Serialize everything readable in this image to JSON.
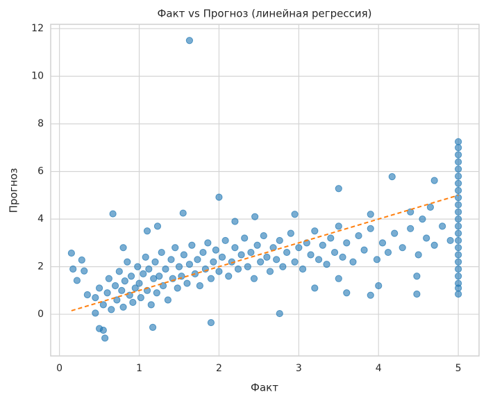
{
  "chart_data": {
    "type": "scatter",
    "title": "Факт vs Прогноз (линейная регрессия)",
    "xlabel": "Факт",
    "ylabel": "Прогноз",
    "xlim": [
      -0.11,
      5.26
    ],
    "ylim": [
      -1.75,
      12.18
    ],
    "xticks": [
      0,
      1,
      2,
      3,
      4,
      5
    ],
    "yticks": [
      0,
      2,
      4,
      6,
      8,
      10,
      12
    ],
    "grid": true,
    "series": [
      {
        "color": "#1f77b4",
        "x": [
          0.45,
          0.5,
          0.55,
          0.6,
          0.62,
          0.65,
          0.7,
          0.72,
          0.75,
          0.78,
          0.8,
          0.82,
          0.85,
          0.88,
          0.9,
          0.92,
          0.95,
          0.98,
          1.0,
          1.02,
          1.05,
          1.08,
          1.1,
          1.12,
          1.15,
          1.18,
          1.2,
          1.22,
          1.25,
          1.28,
          1.3,
          1.33,
          1.36,
          1.4,
          1.42,
          1.45,
          1.48,
          1.5,
          1.53,
          1.56,
          1.6,
          1.63,
          1.66,
          1.7,
          1.73,
          1.76,
          1.8,
          1.83,
          1.86,
          1.9,
          1.93,
          1.96,
          2.0,
          2.04,
          2.08,
          2.12,
          2.16,
          2.2,
          2.24,
          2.28,
          2.32,
          2.36,
          2.4,
          2.44,
          2.48,
          2.52,
          2.56,
          2.6,
          2.64,
          2.68,
          2.72,
          2.76,
          2.8,
          2.85,
          2.9,
          2.95,
          3.0,
          3.05,
          3.1,
          3.15,
          3.2,
          3.25,
          3.3,
          3.35,
          3.4,
          3.45,
          3.5,
          3.55,
          3.6,
          3.68,
          3.75,
          3.82,
          3.9,
          3.98,
          4.05,
          4.12,
          4.2,
          4.3,
          4.4,
          4.5,
          4.6,
          4.7,
          4.8,
          4.9,
          1.63,
          2.0,
          1.55,
          0.67,
          3.5,
          4.17,
          4.7,
          0.15,
          0.17,
          0.22,
          0.28,
          0.31,
          0.35,
          0.5,
          0.55,
          0.57,
          0.45,
          1.17,
          2.76,
          1.9,
          3.2,
          3.5,
          3.6,
          3.9,
          4.0,
          4.48,
          4.48,
          3.9,
          4.4,
          4.55,
          1.23,
          1.1,
          0.8,
          2.45,
          2.2,
          2.95,
          4.65,
          5,
          5,
          5,
          5,
          5,
          5,
          5,
          5,
          5,
          5,
          5,
          5,
          5,
          5,
          5,
          5,
          5,
          5,
          5,
          5,
          5,
          5,
          5
        ],
        "y": [
          0.7,
          1.1,
          0.4,
          0.9,
          1.5,
          0.2,
          1.2,
          0.6,
          1.8,
          1.0,
          0.3,
          1.4,
          2.2,
          0.8,
          1.6,
          0.5,
          1.1,
          2.0,
          1.3,
          0.7,
          1.7,
          2.4,
          1.0,
          1.9,
          0.4,
          1.5,
          2.2,
          0.9,
          1.6,
          2.6,
          1.2,
          1.9,
          0.6,
          2.3,
          1.5,
          2.8,
          1.1,
          2.0,
          1.6,
          2.5,
          1.3,
          2.1,
          2.9,
          1.7,
          2.3,
          1.2,
          2.6,
          1.9,
          3.0,
          1.5,
          2.2,
          2.7,
          1.8,
          2.4,
          3.1,
          1.6,
          2.2,
          2.8,
          1.9,
          2.5,
          3.2,
          2.0,
          2.6,
          1.5,
          2.9,
          2.2,
          3.3,
          2.4,
          1.8,
          2.8,
          2.3,
          3.1,
          2.0,
          2.6,
          3.4,
          2.2,
          2.8,
          1.9,
          3.0,
          2.5,
          3.5,
          2.3,
          2.9,
          2.1,
          3.2,
          2.6,
          3.7,
          2.4,
          3.0,
          2.2,
          3.3,
          2.7,
          3.6,
          2.3,
          3.0,
          2.6,
          3.4,
          2.8,
          3.6,
          2.5,
          3.2,
          2.9,
          3.7,
          3.1,
          11.5,
          4.92,
          4.25,
          4.22,
          5.28,
          5.78,
          5.62,
          2.57,
          1.9,
          1.42,
          2.28,
          1.82,
          0.82,
          -0.6,
          -0.67,
          -1.0,
          0.05,
          -0.55,
          0.03,
          -0.35,
          1.1,
          1.5,
          0.9,
          0.8,
          1.2,
          0.85,
          1.6,
          4.2,
          4.3,
          4.0,
          3.7,
          3.5,
          2.8,
          4.1,
          3.9,
          4.2,
          4.5,
          0.85,
          1.1,
          1.3,
          1.6,
          1.9,
          2.2,
          2.5,
          2.8,
          3.1,
          3.4,
          3.7,
          4.0,
          4.3,
          4.6,
          4.9,
          5.2,
          5.5,
          5.8,
          6.1,
          6.4,
          6.7,
          7.0,
          7.25
        ]
      }
    ],
    "trend": {
      "color": "#ff7f0e",
      "dashed": true,
      "x": [
        0.15,
        5
      ],
      "y": [
        0.15,
        5
      ]
    }
  }
}
